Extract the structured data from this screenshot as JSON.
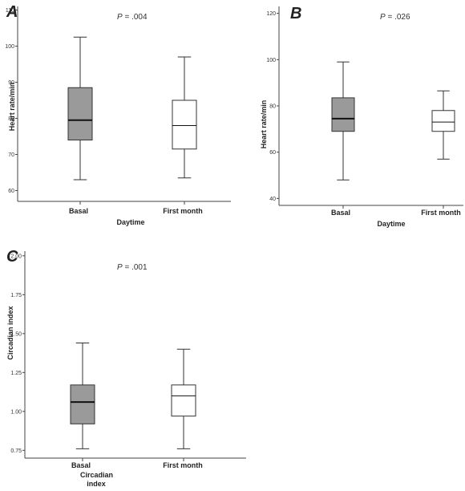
{
  "chart_data": [
    {
      "type": "boxplot",
      "panel": "A",
      "p_prefix": "P",
      "p_value": "= .004",
      "ylabel": "Heart rate/min",
      "xlabel": "Daytime",
      "ylim": [
        57,
        111
      ],
      "yticks": [
        60,
        70,
        80,
        90,
        100,
        110
      ],
      "categories": [
        "Basal",
        "First month"
      ],
      "boxes": [
        {
          "category": "Basal",
          "min": 63,
          "q1": 74,
          "median": 79.5,
          "q3": 88.5,
          "max": 102.5,
          "fill": "#9a9a9a"
        },
        {
          "category": "First month",
          "min": 63.5,
          "q1": 71.5,
          "median": 78,
          "q3": 85,
          "max": 97,
          "fill": "#ffffff"
        }
      ]
    },
    {
      "type": "boxplot",
      "panel": "B",
      "p_prefix": "P",
      "p_value": "= .026",
      "ylabel": "Heart rate/min",
      "xlabel": "Daytime",
      "ylim": [
        37,
        123
      ],
      "yticks": [
        40,
        60,
        80,
        100,
        120
      ],
      "categories": [
        "Basal",
        "First month"
      ],
      "boxes": [
        {
          "category": "Basal",
          "min": 48,
          "q1": 69,
          "median": 74.5,
          "q3": 83.5,
          "max": 99,
          "fill": "#9a9a9a"
        },
        {
          "category": "First month",
          "min": 57,
          "q1": 69,
          "median": 73,
          "q3": 78,
          "max": 86.5,
          "fill": "#ffffff"
        }
      ]
    },
    {
      "type": "boxplot",
      "panel": "C",
      "p_prefix": "P",
      "p_value": "= .001",
      "ylabel": "Circadian index",
      "xlabel": "Circadian index",
      "ylim": [
        0.7,
        2.03
      ],
      "yticks": [
        "0.75",
        "1.00",
        "1.25",
        "1.50",
        "1.75",
        "2.00"
      ],
      "categories": [
        "Basal",
        "First month"
      ],
      "boxes": [
        {
          "category": "Basal",
          "min": 0.76,
          "q1": 0.92,
          "median": 1.06,
          "q3": 1.17,
          "max": 1.44,
          "fill": "#9a9a9a"
        },
        {
          "category": "First month",
          "min": 0.76,
          "q1": 0.97,
          "median": 1.1,
          "q3": 1.17,
          "max": 1.4,
          "fill": "#ffffff"
        }
      ]
    }
  ]
}
